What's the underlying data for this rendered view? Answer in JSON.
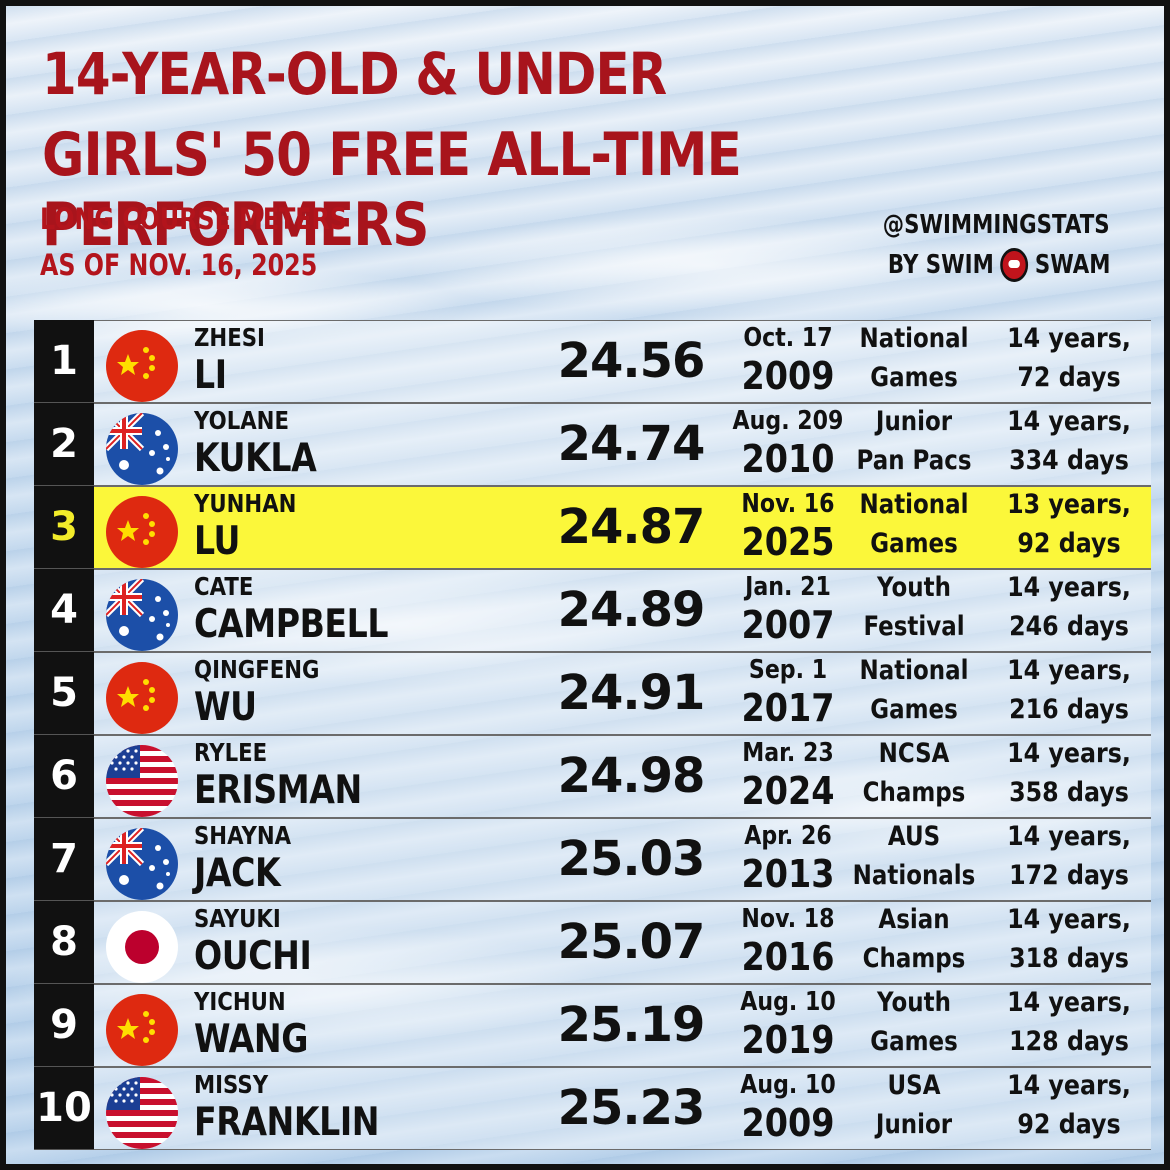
{
  "header": {
    "title_line1": "14-YEAR-OLD & UNDER",
    "title_line2": "GIRLS' 50 FREE ALL-TIME PERFORMERS",
    "subtitle_line1": "LONG COURSE METERS",
    "subtitle_line2": "AS OF NOV. 16, 2025",
    "credit_handle": "@SWIMMINGSTATS",
    "credit_by": "BY SWIM",
    "credit_brand": "SWAM"
  },
  "colors": {
    "title_red": "#a8141c",
    "highlight_yellow": "#fbf73a",
    "rank_bg": "#111111"
  },
  "rows": [
    {
      "rank": "1",
      "flag": "china-flag-icon",
      "first": "ZHESI",
      "last": "LI",
      "time": "24.56",
      "date_md": "Oct. 17",
      "date_yr": "2009",
      "meet1": "National",
      "meet2": "Games",
      "age1": "14 years,",
      "age2": "72 days"
    },
    {
      "rank": "2",
      "flag": "australia-flag-icon",
      "first": "YOLANE",
      "last": "KUKLA",
      "time": "24.74",
      "date_md": "Aug. 209",
      "date_yr": "2010",
      "meet1": "Junior",
      "meet2": "Pan Pacs",
      "age1": "14 years,",
      "age2": "334 days"
    },
    {
      "rank": "3",
      "flag": "china-flag-icon",
      "first": "YUNHAN",
      "last": "LU",
      "time": "24.87",
      "date_md": "Nov. 16",
      "date_yr": "2025",
      "meet1": "National",
      "meet2": "Games",
      "age1": "13 years,",
      "age2": "92 days"
    },
    {
      "rank": "4",
      "flag": "australia-flag-icon",
      "first": "CATE",
      "last": "CAMPBELL",
      "time": "24.89",
      "date_md": "Jan. 21",
      "date_yr": "2007",
      "meet1": "Youth",
      "meet2": "Festival",
      "age1": "14 years,",
      "age2": "246 days"
    },
    {
      "rank": "5",
      "flag": "china-flag-icon",
      "first": "QINGFENG",
      "last": "WU",
      "time": "24.91",
      "date_md": "Sep. 1",
      "date_yr": "2017",
      "meet1": "National",
      "meet2": "Games",
      "age1": "14 years,",
      "age2": "216 days"
    },
    {
      "rank": "6",
      "flag": "usa-flag-icon",
      "first": "RYLEE",
      "last": "ERISMAN",
      "time": "24.98",
      "date_md": "Mar. 23",
      "date_yr": "2024",
      "meet1": "NCSA",
      "meet2": "Champs",
      "age1": "14 years,",
      "age2": "358 days"
    },
    {
      "rank": "7",
      "flag": "australia-flag-icon",
      "first": "SHAYNA",
      "last": "JACK",
      "time": "25.03",
      "date_md": "Apr. 26",
      "date_yr": "2013",
      "meet1": "AUS",
      "meet2": "Nationals",
      "age1": "14 years,",
      "age2": "172 days"
    },
    {
      "rank": "8",
      "flag": "japan-flag-icon",
      "first": "SAYUKI",
      "last": "OUCHI",
      "time": "25.07",
      "date_md": "Nov. 18",
      "date_yr": "2016",
      "meet1": "Asian",
      "meet2": "Champs",
      "age1": "14 years,",
      "age2": "318 days"
    },
    {
      "rank": "9",
      "flag": "china-flag-icon",
      "first": "YICHUN",
      "last": "WANG",
      "time": "25.19",
      "date_md": "Aug. 10",
      "date_yr": "2019",
      "meet1": "Youth",
      "meet2": "Games",
      "age1": "14 years,",
      "age2": "128 days"
    },
    {
      "rank": "10",
      "flag": "usa-flag-icon",
      "first": "MISSY",
      "last": "FRANKLIN",
      "time": "25.23",
      "date_md": "Aug. 10",
      "date_yr": "2009",
      "meet1": "USA",
      "meet2": "Junior",
      "age1": "14 years,",
      "age2": "92 days"
    }
  ],
  "highlight_rank": "3"
}
